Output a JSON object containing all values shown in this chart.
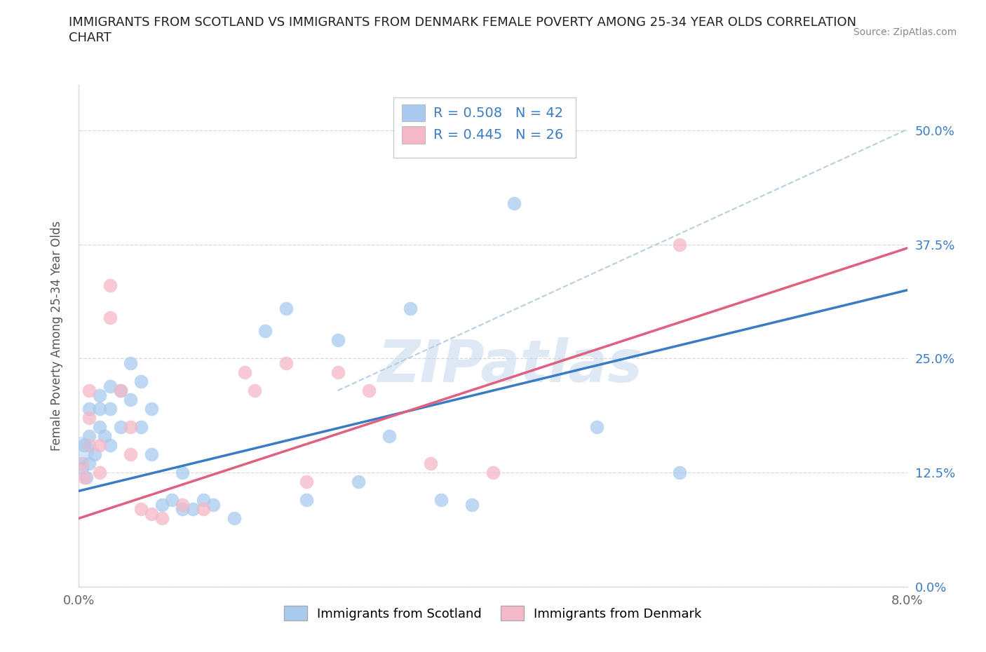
{
  "title_line1": "IMMIGRANTS FROM SCOTLAND VS IMMIGRANTS FROM DENMARK FEMALE POVERTY AMONG 25-34 YEAR OLDS CORRELATION",
  "title_line2": "CHART",
  "source": "Source: ZipAtlas.com",
  "ylabel": "Female Poverty Among 25-34 Year Olds",
  "xlim": [
    0.0,
    0.08
  ],
  "ylim": [
    0.0,
    0.55
  ],
  "yticks": [
    0.0,
    0.125,
    0.25,
    0.375,
    0.5
  ],
  "yticklabels": [
    "0.0%",
    "12.5%",
    "25.0%",
    "37.5%",
    "50.0%"
  ],
  "xticks": [
    0.0,
    0.02,
    0.04,
    0.06,
    0.08
  ],
  "xticklabels": [
    "0.0%",
    "",
    "",
    "",
    "8.0%"
  ],
  "scotland_color": "#a8caee",
  "denmark_color": "#f5b8c8",
  "scotland_R": 0.508,
  "scotland_N": 42,
  "denmark_R": 0.445,
  "denmark_N": 26,
  "scotland_line_color": "#3a7cc4",
  "denmark_line_color": "#e06080",
  "confidence_line_color": "#b8cfe0",
  "legend_text_color": "#3a7cc4",
  "background_color": "#ffffff",
  "watermark": "ZIPatlas",
  "grid_color": "#d8d8d8",
  "scotland_x": [
    0.0003,
    0.0005,
    0.0007,
    0.001,
    0.001,
    0.001,
    0.0015,
    0.002,
    0.002,
    0.002,
    0.0025,
    0.003,
    0.003,
    0.003,
    0.004,
    0.004,
    0.005,
    0.005,
    0.006,
    0.006,
    0.007,
    0.007,
    0.008,
    0.009,
    0.01,
    0.01,
    0.011,
    0.012,
    0.013,
    0.015,
    0.018,
    0.02,
    0.022,
    0.025,
    0.027,
    0.03,
    0.032,
    0.035,
    0.038,
    0.042,
    0.05,
    0.058
  ],
  "scotland_y": [
    0.13,
    0.155,
    0.12,
    0.195,
    0.165,
    0.135,
    0.145,
    0.21,
    0.195,
    0.175,
    0.165,
    0.22,
    0.195,
    0.155,
    0.215,
    0.175,
    0.245,
    0.205,
    0.225,
    0.175,
    0.195,
    0.145,
    0.09,
    0.095,
    0.125,
    0.085,
    0.085,
    0.095,
    0.09,
    0.075,
    0.28,
    0.305,
    0.095,
    0.27,
    0.115,
    0.165,
    0.305,
    0.095,
    0.09,
    0.42,
    0.175,
    0.125
  ],
  "denmark_x": [
    0.0003,
    0.0005,
    0.001,
    0.001,
    0.001,
    0.002,
    0.002,
    0.003,
    0.003,
    0.004,
    0.005,
    0.005,
    0.006,
    0.007,
    0.008,
    0.01,
    0.012,
    0.016,
    0.017,
    0.02,
    0.022,
    0.025,
    0.028,
    0.034,
    0.04,
    0.058
  ],
  "denmark_y": [
    0.135,
    0.12,
    0.215,
    0.185,
    0.155,
    0.155,
    0.125,
    0.33,
    0.295,
    0.215,
    0.175,
    0.145,
    0.085,
    0.08,
    0.075,
    0.09,
    0.085,
    0.235,
    0.215,
    0.245,
    0.115,
    0.235,
    0.215,
    0.135,
    0.125,
    0.375
  ]
}
